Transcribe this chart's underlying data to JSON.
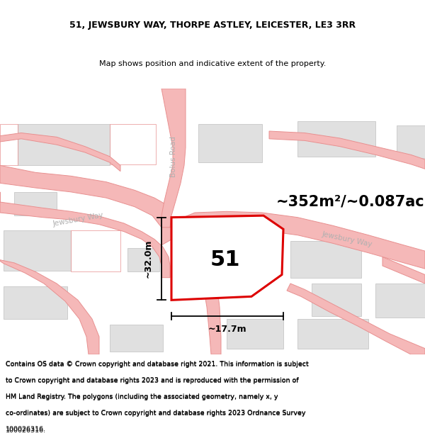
{
  "title_line1": "51, JEWSBURY WAY, THORPE ASTLEY, LEICESTER, LE3 3RR",
  "title_line2": "Map shows position and indicative extent of the property.",
  "area_text": "~352m²/~0.087ac.",
  "label_51": "51",
  "dim_width": "~17.7m",
  "dim_height": "~32.0m",
  "road_label_bolus": "Bolus Road",
  "road_label_jewsbury_left": "Jewsbury Way",
  "road_label_jewsbury_right": "Jewsbury Way",
  "footer_text_line1": "Contains OS data © Crown copyright and database right 2021. This information is subject",
  "footer_text_line2": "to Crown copyright and database rights 2023 and is reproduced with the permission of",
  "footer_text_line3": "HM Land Registry. The polygons (including the associated geometry, namely x, y",
  "footer_text_line4": "co-ordinates) are subject to Crown copyright and database rights 2023 Ordnance Survey",
  "footer_text_line5": "100026316.",
  "map_bg": "#ffffff",
  "road_color": "#f5b8b8",
  "road_edge": "#e89090",
  "building_color": "#e0e0e0",
  "building_edge": "#cccccc",
  "highlight_color": "#dd0000",
  "road_label_color": "#b0b0b0",
  "map_area_bg": "#f0f0f0"
}
